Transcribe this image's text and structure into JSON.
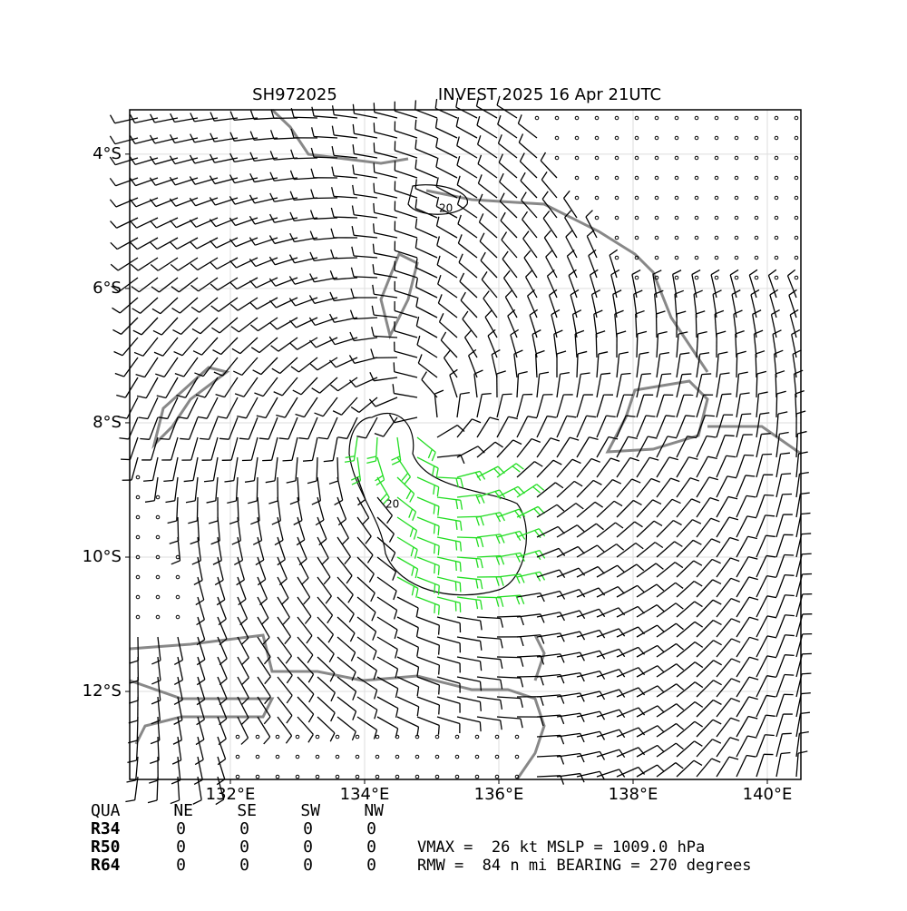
{
  "header": {
    "storm_id": "SH972025",
    "title": "INVEST 2025 16 Apr 21UTC"
  },
  "map": {
    "lon_ticks": [
      {
        "value": 132,
        "label": "132°E"
      },
      {
        "value": 134,
        "label": "134°E"
      },
      {
        "value": 136,
        "label": "136°E"
      },
      {
        "value": 138,
        "label": "138°E"
      },
      {
        "value": 140,
        "label": "140°E"
      }
    ],
    "lat_ticks": [
      {
        "value": -4,
        "label": "4°S"
      },
      {
        "value": -6,
        "label": "6°S"
      },
      {
        "value": -8,
        "label": "8°S"
      },
      {
        "value": -10,
        "label": "10°S"
      },
      {
        "value": -12,
        "label": "12°S"
      }
    ],
    "contour_labels": [
      "20",
      "20"
    ]
  },
  "table": {
    "header": [
      "QUA",
      "NE",
      "SE",
      "SW",
      "NW"
    ],
    "rows": [
      [
        "R34",
        "0",
        "0",
        "0",
        "0"
      ],
      [
        "R50",
        "0",
        "0",
        "0",
        "0"
      ],
      [
        "R64",
        "0",
        "0",
        "0",
        "0"
      ]
    ]
  },
  "summary": [
    "VMAX =  26 kt MSLP = 1009.0 hPa",
    "RMW =  84 n mi BEARING = 270 degrees"
  ]
}
